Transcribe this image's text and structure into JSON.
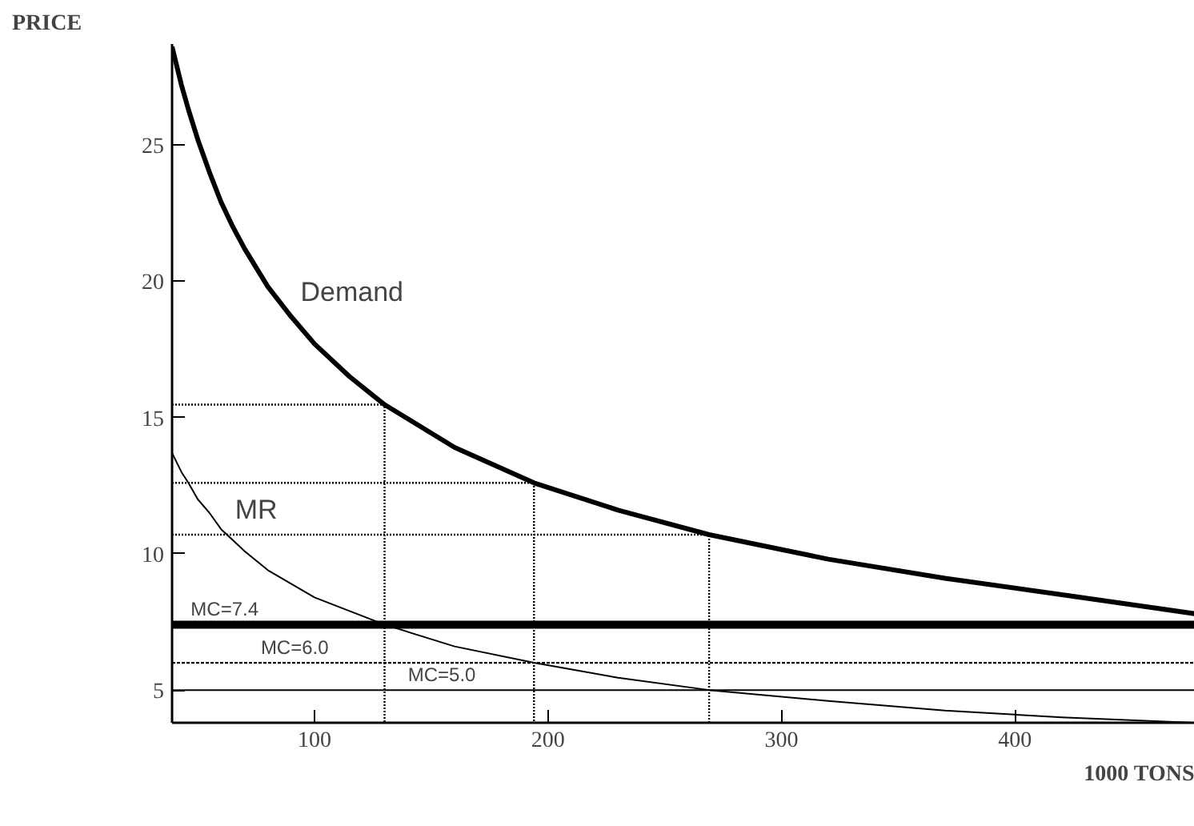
{
  "chart_data": {
    "type": "line",
    "xlabel": "1000 TONS",
    "ylabel": "PRICE",
    "xlim": [
      39,
      477
    ],
    "ylim": [
      3.8,
      28.7
    ],
    "xticks": [
      100,
      200,
      300,
      400
    ],
    "yticks": [
      5,
      10,
      15,
      20,
      25
    ],
    "grid": false,
    "marker": "none",
    "series": [
      {
        "color": "#000000",
        "x": [
          39,
          43,
          46,
          50,
          55,
          60,
          65,
          70,
          80,
          90,
          100,
          115,
          130,
          160,
          194,
          230,
          269,
          320,
          370,
          420,
          477
        ],
        "values": [
          28.6,
          27.2,
          26.3,
          25.2,
          24.0,
          22.9,
          22.0,
          21.2,
          19.8,
          18.7,
          17.7,
          16.5,
          15.47,
          13.9,
          12.6,
          11.6,
          10.7,
          9.8,
          9.1,
          8.5,
          7.8
        ]
      },
      {
        "color": "#000000",
        "x": [
          39,
          43,
          46,
          50,
          55,
          60,
          65,
          70,
          80,
          90,
          100,
          115,
          130,
          160,
          194,
          230,
          269,
          320,
          370,
          420,
          477
        ],
        "values": [
          13.7,
          13.0,
          12.6,
          12.0,
          11.5,
          10.9,
          10.5,
          10.1,
          9.4,
          8.9,
          8.4,
          7.9,
          7.4,
          6.6,
          6.0,
          5.45,
          5.0,
          4.6,
          4.25,
          4.0,
          3.8
        ]
      },
      {
        "color": "#000000",
        "line_style": "dotted",
        "x": [
          39,
          130,
          130
        ],
        "values": [
          15.47,
          15.47,
          3.8
        ]
      },
      {
        "color": "#000000",
        "line_style": "dotted",
        "x": [
          39,
          194,
          194
        ],
        "values": [
          12.6,
          12.6,
          3.8
        ]
      },
      {
        "color": "#000000",
        "line_style": "dotted",
        "x": [
          39,
          269,
          269
        ],
        "values": [
          10.7,
          10.7,
          3.8
        ]
      }
    ],
    "ref_lines": [
      {
        "axis": "y",
        "value": 7.4,
        "line_style": "solid",
        "color": "#000000"
      },
      {
        "axis": "y",
        "value": 6.0,
        "line_style": "dashed",
        "color": "#000000"
      },
      {
        "axis": "y",
        "value": 5.0,
        "line_style": "solid",
        "color": "#000000"
      }
    ],
    "annotations": [
      "Demand",
      "MR",
      {
        "text": "MC=7.4",
        "x": 47,
        "y": 7.55
      },
      {
        "text": "MC=6.0",
        "x": 77,
        "y": 6.15
      },
      {
        "text": "MC=5.0",
        "x": 140,
        "y": 5.15
      }
    ]
  }
}
